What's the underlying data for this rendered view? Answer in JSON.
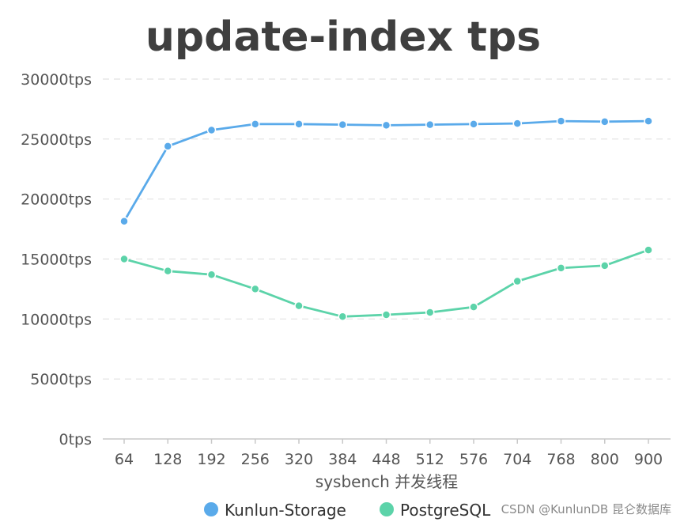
{
  "chart_data": {
    "type": "line",
    "title": "update-index tps",
    "xlabel": "sysbench 并发线程",
    "ylabel": "",
    "categories": [
      "64",
      "128",
      "192",
      "256",
      "320",
      "384",
      "448",
      "512",
      "576",
      "704",
      "768",
      "800",
      "900"
    ],
    "y_ticks": [
      "0tps",
      "5000tps",
      "10000tps",
      "15000tps",
      "20000tps",
      "25000tps",
      "30000tps"
    ],
    "ylim": [
      0,
      30000
    ],
    "grid": "horizontal dashed",
    "legend_position": "bottom",
    "series": [
      {
        "name": "Kunlun-Storage",
        "color": "#5aaaea",
        "values": [
          18150,
          24400,
          25750,
          26250,
          26250,
          26200,
          26150,
          26200,
          26250,
          26300,
          26500,
          26450,
          26500
        ]
      },
      {
        "name": "PostgreSQL",
        "color": "#5cd3a9",
        "values": [
          15000,
          14000,
          13700,
          12500,
          11100,
          10200,
          10350,
          10550,
          11000,
          13150,
          14250,
          14450,
          15750
        ]
      }
    ]
  },
  "watermark": "CSDN @KunlunDB 昆仑数据库"
}
